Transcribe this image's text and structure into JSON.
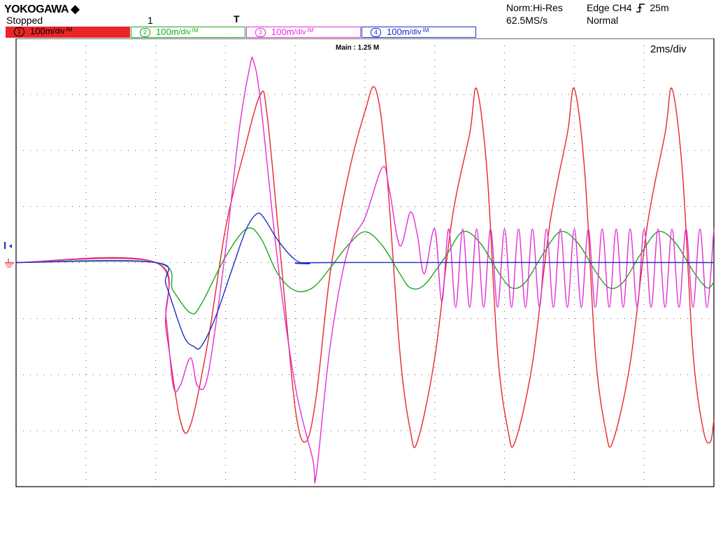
{
  "header": {
    "brand": "YOKOGAWA ◆",
    "status": "Stopped",
    "trigger_marker": "1",
    "trigger_pos_icon": "T",
    "acq_mode": "Norm:Hi-Res",
    "sample_rate": "62.5MS/s",
    "trigger_setting": "Edge CH4",
    "trigger_level": "25m",
    "trigger_mode": "Normal"
  },
  "channels": [
    {
      "num": "1",
      "scale": "100m",
      "unit": "/div",
      "coupling": "IM",
      "color": "#e8262a"
    },
    {
      "num": "2",
      "scale": "100m",
      "unit": "/div",
      "coupling": "IM",
      "color": "#1fa51f"
    },
    {
      "num": "3",
      "scale": "100m",
      "unit": "/div",
      "coupling": "IM",
      "color": "#e12ed7"
    },
    {
      "num": "4",
      "scale": "100m",
      "unit": "/div",
      "coupling": "IM",
      "color": "#1a2fc2"
    }
  ],
  "display": {
    "main_label": "Main : 1.25 M",
    "timebase": "2ms/div",
    "trigger_level_marker": "I",
    "ground_marker": "⏚"
  },
  "chart_data": {
    "type": "line",
    "xlabel": "",
    "ylabel": "",
    "x_unit": "ms",
    "y_unit": "div",
    "xlim": [
      -4,
      16
    ],
    "ylim": [
      -4,
      4
    ],
    "grid": true,
    "series": [
      {
        "name": "CH1",
        "color": "#e8262a",
        "points": [
          [
            -4,
            0
          ],
          [
            0,
            0
          ],
          [
            0.3,
            -1.2
          ],
          [
            0.7,
            -2.8
          ],
          [
            1.0,
            -2.9
          ],
          [
            1.5,
            -1.4
          ],
          [
            2.0,
            0.6
          ],
          [
            2.5,
            1.9
          ],
          [
            3.0,
            3.0
          ],
          [
            3.2,
            2.6
          ],
          [
            3.6,
            0
          ],
          [
            4.0,
            -2.6
          ],
          [
            4.3,
            -3.2
          ],
          [
            4.6,
            -2.4
          ],
          [
            5.0,
            -0.2
          ],
          [
            5.5,
            1.5
          ],
          [
            6.0,
            2.7
          ],
          [
            6.3,
            3.1
          ],
          [
            6.6,
            1.8
          ],
          [
            7.0,
            -1.6
          ],
          [
            7.3,
            -3.0
          ],
          [
            7.5,
            -3.2
          ],
          [
            8.0,
            -1.7
          ],
          [
            8.5,
            0.8
          ],
          [
            9.0,
            2.3
          ],
          [
            9.2,
            3.1
          ],
          [
            9.5,
            1.6
          ],
          [
            9.8,
            -1.6
          ],
          [
            10.1,
            -3.0
          ],
          [
            10.3,
            -3.2
          ],
          [
            10.8,
            -1.8
          ],
          [
            11.3,
            0.7
          ],
          [
            11.8,
            2.3
          ],
          [
            12.0,
            3.1
          ],
          [
            12.3,
            1.6
          ],
          [
            12.6,
            -1.6
          ],
          [
            12.9,
            -3.0
          ],
          [
            13.1,
            -3.2
          ],
          [
            13.6,
            -1.8
          ],
          [
            14.1,
            0.7
          ],
          [
            14.6,
            2.3
          ],
          [
            14.8,
            3.1
          ],
          [
            15.1,
            1.6
          ],
          [
            15.4,
            -1.6
          ],
          [
            15.7,
            -3.0
          ],
          [
            15.9,
            -3.2
          ],
          [
            16.0,
            -2.8
          ]
        ]
      },
      {
        "name": "CH2",
        "color": "#1fa51f",
        "points": [
          [
            -4,
            0
          ],
          [
            0,
            0
          ],
          [
            0.5,
            -0.5
          ],
          [
            1.0,
            -0.9
          ],
          [
            1.3,
            -0.75
          ],
          [
            2.0,
            0.1
          ],
          [
            2.6,
            0.6
          ],
          [
            3.0,
            0.45
          ],
          [
            3.5,
            -0.2
          ],
          [
            4.0,
            -0.5
          ],
          [
            4.5,
            -0.45
          ],
          [
            5.0,
            -0.1
          ],
          [
            5.5,
            0.3
          ],
          [
            6.0,
            0.55
          ],
          [
            6.5,
            0.3
          ],
          [
            7.0,
            -0.2
          ],
          [
            7.3,
            -0.45
          ],
          [
            7.7,
            -0.4
          ],
          [
            8.3,
            0.1
          ],
          [
            8.8,
            0.55
          ],
          [
            9.3,
            0.35
          ],
          [
            9.8,
            -0.15
          ],
          [
            10.2,
            -0.45
          ],
          [
            10.6,
            -0.35
          ],
          [
            11.1,
            0.15
          ],
          [
            11.6,
            0.55
          ],
          [
            12.1,
            0.35
          ],
          [
            12.6,
            -0.15
          ],
          [
            13.0,
            -0.45
          ],
          [
            13.4,
            -0.35
          ],
          [
            13.9,
            0.15
          ],
          [
            14.4,
            0.55
          ],
          [
            14.9,
            0.35
          ],
          [
            15.4,
            -0.15
          ],
          [
            15.8,
            -0.45
          ],
          [
            16.0,
            -0.35
          ]
        ]
      },
      {
        "name": "CH3",
        "color": "#e12ed7",
        "points": [
          [
            -4,
            0
          ],
          [
            0,
            0
          ],
          [
            0.3,
            -1.0
          ],
          [
            0.5,
            -2.2
          ],
          [
            0.7,
            -2.2
          ],
          [
            1.0,
            -1.7
          ],
          [
            1.2,
            -2.2
          ],
          [
            1.5,
            -2.0
          ],
          [
            2.0,
            0.2
          ],
          [
            2.4,
            2.4
          ],
          [
            2.7,
            3.5
          ],
          [
            2.8,
            3.6
          ],
          [
            3.0,
            2.9
          ],
          [
            3.5,
            0
          ],
          [
            4.0,
            -2.2
          ],
          [
            4.5,
            -3.5
          ],
          [
            4.6,
            -3.8
          ],
          [
            5.0,
            -1.5
          ],
          [
            5.5,
            0.2
          ],
          [
            6.0,
            0.8
          ],
          [
            6.5,
            1.7
          ],
          [
            6.7,
            1.3
          ],
          [
            7.0,
            0.3
          ],
          [
            7.3,
            0.9
          ],
          [
            7.5,
            0.5
          ],
          [
            7.7,
            -0.2
          ],
          [
            8.0,
            0.6
          ],
          [
            8.2,
            -0.7
          ],
          [
            8.4,
            0.6
          ],
          [
            8.6,
            -0.8
          ],
          [
            8.8,
            0.6
          ],
          [
            9.0,
            -0.8
          ],
          [
            9.2,
            0.6
          ],
          [
            9.4,
            -0.8
          ],
          [
            9.6,
            0.6
          ],
          [
            9.8,
            -0.8
          ],
          [
            10.0,
            0.6
          ],
          [
            10.2,
            -0.8
          ],
          [
            10.4,
            0.6
          ],
          [
            10.6,
            -0.8
          ],
          [
            10.8,
            0.6
          ],
          [
            11.0,
            -0.8
          ],
          [
            11.2,
            0.6
          ],
          [
            11.4,
            -0.8
          ],
          [
            11.6,
            0.6
          ],
          [
            11.8,
            -0.8
          ],
          [
            12.0,
            0.6
          ],
          [
            12.2,
            -0.8
          ],
          [
            12.4,
            0.6
          ],
          [
            12.6,
            -0.8
          ],
          [
            12.8,
            0.6
          ],
          [
            13.0,
            -0.8
          ],
          [
            13.2,
            0.6
          ],
          [
            13.4,
            -0.8
          ],
          [
            13.6,
            0.6
          ],
          [
            13.8,
            -0.8
          ],
          [
            14.0,
            0.6
          ],
          [
            14.2,
            -0.8
          ],
          [
            14.4,
            0.6
          ],
          [
            14.6,
            -0.8
          ],
          [
            14.8,
            0.6
          ],
          [
            15.0,
            -0.8
          ],
          [
            15.2,
            0.6
          ],
          [
            15.4,
            -0.8
          ],
          [
            15.6,
            0.6
          ],
          [
            15.8,
            -0.8
          ],
          [
            16.0,
            0.6
          ]
        ]
      },
      {
        "name": "CH4",
        "color": "#1a2fc2",
        "points": [
          [
            -4,
            0
          ],
          [
            0,
            0
          ],
          [
            0.3,
            -0.4
          ],
          [
            0.8,
            -1.3
          ],
          [
            1.1,
            -1.5
          ],
          [
            1.3,
            -1.5
          ],
          [
            1.7,
            -1.0
          ],
          [
            2.2,
            -0.1
          ],
          [
            2.6,
            0.6
          ],
          [
            2.9,
            0.87
          ],
          [
            3.1,
            0.8
          ],
          [
            3.5,
            0.4
          ],
          [
            4.0,
            0.05
          ],
          [
            4.4,
            -0.02
          ],
          [
            5.0,
            0
          ],
          [
            16.0,
            0
          ]
        ]
      }
    ]
  }
}
